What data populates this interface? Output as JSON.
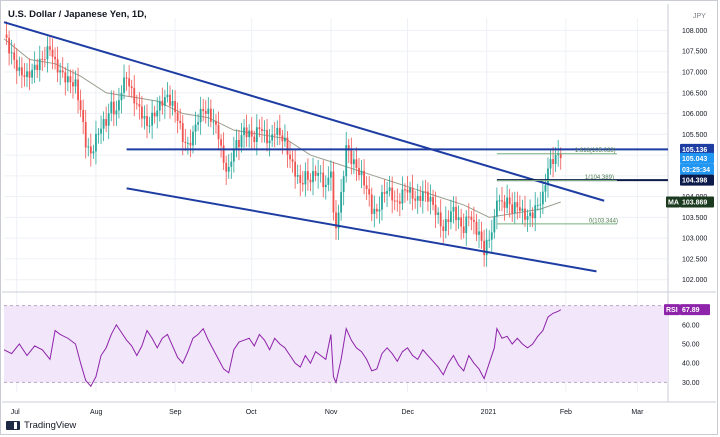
{
  "header": {
    "title": "U.S. Dollar / Japanese Yen, 1D,"
  },
  "footer": {
    "brand": "TradingView"
  },
  "colors": {
    "up": "#26a69a",
    "down": "#ef5350",
    "channel": "#1e3da3",
    "ma_line": "#9a9f8e",
    "rsi_line": "#8e24aa",
    "rsi_band": "#f2e6fa",
    "fib_line": "#79ad7c",
    "price_box": "#2196f3",
    "grid": "#edf0f5"
  },
  "chart_data": [
    {
      "type": "candlestick",
      "title": "U.S. Dollar / Japanese Yen, 1D,",
      "currency": "JPY",
      "ylim": [
        101.8,
        108.3
      ],
      "y_ticks": [
        "108.000",
        "107.500",
        "107.000",
        "106.500",
        "106.000",
        "105.500",
        "105.000",
        "104.500",
        "104.000",
        "103.500",
        "103.000",
        "102.500",
        "102.000"
      ],
      "x_ticks": [
        "Jul",
        "Aug",
        "Sep",
        "Oct",
        "Nov",
        "Dec",
        "2021",
        "Feb",
        "Mar"
      ],
      "x_tick_day": [
        5,
        36,
        67,
        97,
        128,
        158,
        189,
        220,
        248
      ],
      "close_series": [
        [
          0,
          107.9
        ],
        [
          3,
          107.4
        ],
        [
          6,
          107.0
        ],
        [
          9,
          106.9
        ],
        [
          12,
          107.1
        ],
        [
          15,
          107.3
        ],
        [
          18,
          107.6
        ],
        [
          20,
          107.2
        ],
        [
          22,
          107.0
        ],
        [
          25,
          106.8
        ],
        [
          28,
          106.7
        ],
        [
          30,
          106.1
        ],
        [
          32,
          105.3
        ],
        [
          34,
          105.0
        ],
        [
          36,
          105.4
        ],
        [
          38,
          105.7
        ],
        [
          40,
          105.8
        ],
        [
          42,
          106.2
        ],
        [
          44,
          106.0
        ],
        [
          46,
          106.6
        ],
        [
          48,
          106.9
        ],
        [
          50,
          106.5
        ],
        [
          52,
          106.2
        ],
        [
          54,
          106.0
        ],
        [
          56,
          105.7
        ],
        [
          58,
          105.9
        ],
        [
          60,
          106.1
        ],
        [
          62,
          106.3
        ],
        [
          64,
          106.4
        ],
        [
          66,
          106.2
        ],
        [
          68,
          105.9
        ],
        [
          70,
          105.4
        ],
        [
          72,
          105.2
        ],
        [
          74,
          105.5
        ],
        [
          76,
          105.9
        ],
        [
          78,
          106.1
        ],
        [
          80,
          106.0
        ],
        [
          82,
          105.8
        ],
        [
          84,
          105.5
        ],
        [
          86,
          104.8
        ],
        [
          88,
          104.6
        ],
        [
          90,
          105.2
        ],
        [
          92,
          105.3
        ],
        [
          94,
          105.6
        ],
        [
          96,
          105.5
        ],
        [
          98,
          105.4
        ],
        [
          100,
          105.7
        ],
        [
          102,
          105.5
        ],
        [
          104,
          105.3
        ],
        [
          106,
          105.6
        ],
        [
          108,
          105.5
        ],
        [
          110,
          105.3
        ],
        [
          112,
          104.9
        ],
        [
          114,
          104.6
        ],
        [
          116,
          104.3
        ],
        [
          118,
          104.5
        ],
        [
          120,
          104.4
        ],
        [
          122,
          104.6
        ],
        [
          124,
          104.5
        ],
        [
          126,
          104.2
        ],
        [
          128,
          104.7
        ],
        [
          129,
          103.5
        ],
        [
          130,
          103.3
        ],
        [
          132,
          104.0
        ],
        [
          134,
          105.2
        ],
        [
          136,
          104.9
        ],
        [
          138,
          104.7
        ],
        [
          140,
          104.5
        ],
        [
          142,
          104.2
        ],
        [
          144,
          103.7
        ],
        [
          146,
          103.6
        ],
        [
          148,
          104.0
        ],
        [
          150,
          104.2
        ],
        [
          152,
          104.0
        ],
        [
          154,
          103.8
        ],
        [
          156,
          104.1
        ],
        [
          158,
          104.2
        ],
        [
          160,
          104.0
        ],
        [
          162,
          103.9
        ],
        [
          164,
          104.1
        ],
        [
          166,
          104.0
        ],
        [
          168,
          103.8
        ],
        [
          170,
          103.5
        ],
        [
          172,
          103.2
        ],
        [
          174,
          103.5
        ],
        [
          176,
          103.7
        ],
        [
          178,
          103.4
        ],
        [
          180,
          103.2
        ],
        [
          182,
          103.6
        ],
        [
          184,
          103.3
        ],
        [
          186,
          103.1
        ],
        [
          188,
          102.7
        ],
        [
          190,
          103.0
        ],
        [
          192,
          103.4
        ],
        [
          193,
          104.0
        ],
        [
          195,
          103.8
        ],
        [
          197,
          103.9
        ],
        [
          199,
          103.7
        ],
        [
          201,
          103.8
        ],
        [
          203,
          103.6
        ],
        [
          205,
          103.5
        ],
        [
          207,
          103.6
        ],
        [
          209,
          103.8
        ],
        [
          211,
          104.0
        ],
        [
          213,
          104.7
        ],
        [
          215,
          104.9
        ],
        [
          217,
          105.0
        ],
        [
          218,
          105.04
        ]
      ],
      "ma_series": [
        [
          0,
          107.8
        ],
        [
          10,
          107.3
        ],
        [
          20,
          107.2
        ],
        [
          30,
          106.9
        ],
        [
          40,
          106.5
        ],
        [
          50,
          106.4
        ],
        [
          60,
          106.3
        ],
        [
          70,
          106.0
        ],
        [
          80,
          105.9
        ],
        [
          90,
          105.6
        ],
        [
          100,
          105.5
        ],
        [
          110,
          105.4
        ],
        [
          120,
          105.0
        ],
        [
          130,
          104.8
        ],
        [
          140,
          104.6
        ],
        [
          150,
          104.4
        ],
        [
          160,
          104.2
        ],
        [
          170,
          104.0
        ],
        [
          180,
          103.8
        ],
        [
          190,
          103.5
        ],
        [
          200,
          103.6
        ],
        [
          210,
          103.7
        ],
        [
          218,
          103.87
        ]
      ],
      "channel_upper": [
        [
          0,
          108.2
        ],
        [
          235,
          103.9
        ]
      ],
      "channel_lower": [
        [
          48,
          104.2
        ],
        [
          232,
          102.2
        ]
      ],
      "horizontal_lines": [
        {
          "value": 105.136,
          "label": "105.136"
        },
        {
          "value": 104.398,
          "label": "104.398"
        }
      ],
      "fibonacci": [
        {
          "label": "1.618(105.033)",
          "value": 105.033
        },
        {
          "label": "1(104.389)",
          "value": 104.389
        },
        {
          "label": "0(103.344)",
          "value": 103.344
        }
      ],
      "price_labels": {
        "last_price": "105.043",
        "countdown": "03:25:34",
        "ma_tag": "MA",
        "ma_value": "103.869"
      }
    },
    {
      "type": "line",
      "name": "RSI",
      "ylim": [
        25,
        75
      ],
      "y_ticks": [
        "60.00",
        "50.00",
        "40.00",
        "30.00"
      ],
      "band": [
        30,
        70
      ],
      "series": [
        [
          0,
          47
        ],
        [
          3,
          45
        ],
        [
          6,
          50
        ],
        [
          9,
          44
        ],
        [
          12,
          49
        ],
        [
          15,
          47
        ],
        [
          18,
          42
        ],
        [
          20,
          57
        ],
        [
          22,
          55
        ],
        [
          25,
          53
        ],
        [
          28,
          50
        ],
        [
          30,
          40
        ],
        [
          32,
          31
        ],
        [
          34,
          28
        ],
        [
          36,
          33
        ],
        [
          38,
          44
        ],
        [
          40,
          48
        ],
        [
          42,
          55
        ],
        [
          44,
          60
        ],
        [
          46,
          56
        ],
        [
          48,
          52
        ],
        [
          50,
          49
        ],
        [
          52,
          44
        ],
        [
          54,
          49
        ],
        [
          56,
          57
        ],
        [
          58,
          53
        ],
        [
          60,
          48
        ],
        [
          62,
          53
        ],
        [
          64,
          55
        ],
        [
          66,
          49
        ],
        [
          68,
          43
        ],
        [
          70,
          40
        ],
        [
          72,
          46
        ],
        [
          74,
          53
        ],
        [
          76,
          55
        ],
        [
          78,
          58
        ],
        [
          80,
          52
        ],
        [
          82,
          47
        ],
        [
          84,
          42
        ],
        [
          86,
          37
        ],
        [
          88,
          35
        ],
        [
          90,
          47
        ],
        [
          92,
          51
        ],
        [
          94,
          52
        ],
        [
          96,
          53
        ],
        [
          98,
          49
        ],
        [
          100,
          55
        ],
        [
          102,
          52
        ],
        [
          104,
          47
        ],
        [
          106,
          53
        ],
        [
          108,
          50
        ],
        [
          110,
          48
        ],
        [
          112,
          44
        ],
        [
          114,
          40
        ],
        [
          116,
          38
        ],
        [
          118,
          44
        ],
        [
          120,
          40
        ],
        [
          122,
          46
        ],
        [
          124,
          44
        ],
        [
          126,
          42
        ],
        [
          128,
          55
        ],
        [
          129,
          33
        ],
        [
          130,
          30
        ],
        [
          132,
          42
        ],
        [
          134,
          58
        ],
        [
          136,
          52
        ],
        [
          138,
          48
        ],
        [
          140,
          46
        ],
        [
          142,
          42
        ],
        [
          144,
          36
        ],
        [
          146,
          37
        ],
        [
          148,
          45
        ],
        [
          150,
          48
        ],
        [
          152,
          45
        ],
        [
          154,
          41
        ],
        [
          156,
          46
        ],
        [
          158,
          48
        ],
        [
          160,
          44
        ],
        [
          162,
          42
        ],
        [
          164,
          47
        ],
        [
          166,
          44
        ],
        [
          168,
          41
        ],
        [
          170,
          38
        ],
        [
          172,
          34
        ],
        [
          174,
          40
        ],
        [
          176,
          44
        ],
        [
          178,
          39
        ],
        [
          180,
          36
        ],
        [
          182,
          44
        ],
        [
          184,
          40
        ],
        [
          186,
          37
        ],
        [
          188,
          32
        ],
        [
          190,
          40
        ],
        [
          192,
          48
        ],
        [
          193,
          58
        ],
        [
          195,
          53
        ],
        [
          197,
          54
        ],
        [
          199,
          50
        ],
        [
          201,
          53
        ],
        [
          203,
          50
        ],
        [
          205,
          48
        ],
        [
          207,
          50
        ],
        [
          209,
          54
        ],
        [
          211,
          57
        ],
        [
          213,
          64
        ],
        [
          215,
          66
        ],
        [
          217,
          67
        ],
        [
          218,
          67.89
        ]
      ],
      "value_tag": "RSI",
      "value_label": "67.89"
    }
  ]
}
